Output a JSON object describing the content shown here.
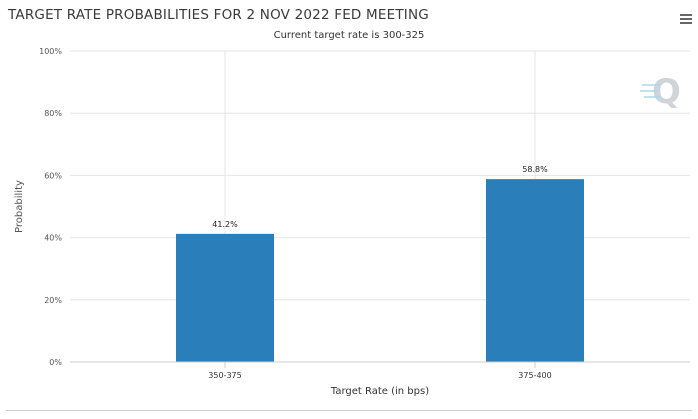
{
  "chart_data": {
    "type": "bar",
    "title": "TARGET RATE PROBABILITIES FOR 2 NOV 2022 FED MEETING",
    "subtitle": "Current target rate is 300-325",
    "xlabel": "Target Rate (in bps)",
    "ylabel": "Probability",
    "categories": [
      "350-375",
      "375-400"
    ],
    "values": [
      41.2,
      58.8
    ],
    "data_labels": [
      "41.2%",
      "58.8%"
    ],
    "ylim": [
      0,
      100
    ],
    "yticks": [
      0,
      20,
      40,
      60,
      80,
      100
    ],
    "ytick_labels": [
      "0%",
      "20%",
      "40%",
      "60%",
      "80%",
      "100%"
    ],
    "grid": true,
    "bar_color": "#2a7fba"
  },
  "watermark": {
    "letter": "Q"
  },
  "menu": {
    "icon": "hamburger-menu-icon"
  }
}
